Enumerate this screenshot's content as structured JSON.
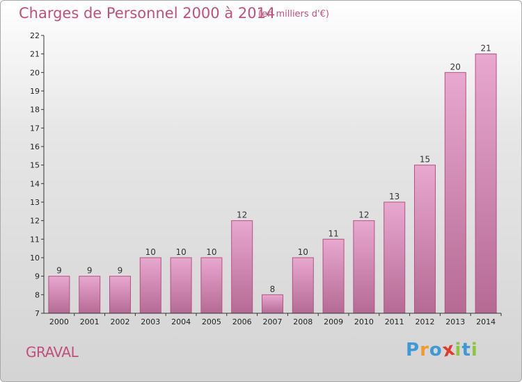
{
  "title": "Charges de Personnel 2000 à 2014",
  "subtitle": "(en milliers d'€)",
  "commune": "GRAVAL",
  "logo": {
    "letters": [
      "P",
      "r",
      "o",
      "x",
      "i",
      "t",
      "i"
    ],
    "colors": [
      "#3e9ad6",
      "#f39a2a",
      "#3e9ad6",
      "#e23a2a",
      "#8cc63f",
      "#3e9ad6",
      "#8cc63f"
    ]
  },
  "colors": {
    "accent": "#c14f7e",
    "bar_top": "#e8a8cf",
    "bar_bottom": "#b56a94",
    "bar_edge": "#b5527f"
  },
  "chart_data": {
    "type": "bar",
    "title": "Charges de Personnel 2000 à 2014",
    "subtitle": "(en milliers d'€)",
    "categories": [
      "2000",
      "2001",
      "2002",
      "2003",
      "2004",
      "2005",
      "2006",
      "2007",
      "2008",
      "2009",
      "2010",
      "2011",
      "2012",
      "2013",
      "2014"
    ],
    "values": [
      9,
      9,
      9,
      10,
      10,
      10,
      12,
      8,
      10,
      11,
      12,
      13,
      15,
      20,
      21
    ],
    "ylim": [
      7,
      22
    ],
    "yticks": [
      7,
      8,
      9,
      10,
      11,
      12,
      13,
      14,
      15,
      16,
      17,
      18,
      19,
      20,
      21,
      22
    ],
    "grid": false,
    "data_labels": true
  }
}
